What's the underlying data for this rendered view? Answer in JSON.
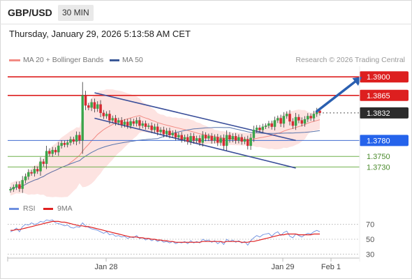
{
  "header": {
    "symbol": "GBP/USD",
    "timeframe": "30 MIN",
    "datetime": "Thursday, January 29, 2026 5:13:58 AM CET",
    "credit": "Research © 2026 Trading Central"
  },
  "legend": {
    "ma20": "MA 20 + Bollinger Bands",
    "ma50": "MA 50",
    "rsi": "RSI",
    "rsi_ma": "9MA"
  },
  "colors": {
    "bull": "#3ba44a",
    "bear": "#d52b32",
    "resistance": "#dd1f1f",
    "pivot": "#3f6bd1",
    "support": "#6fb04c",
    "channel": "#3b4f9a",
    "bollinger_fill": "#fde3e1",
    "ma20": "#f28b84",
    "ma50": "#5a76ad",
    "rsi": "#6d8fe0",
    "rsi_ma": "#e02020",
    "arrow": "#2a5fb0"
  },
  "chart_data": [
    {
      "type": "candlestick",
      "title": "GBP/USD 30 MIN",
      "ylim": [
        1.367,
        1.392
      ],
      "x_ticks": [
        "Jan 28",
        "Jan 29",
        "Feb 1"
      ],
      "last_price": 1.3832,
      "levels": [
        {
          "label": "1.3900",
          "value": 1.39,
          "kind": "resistance",
          "style": "box"
        },
        {
          "label": "1.3865",
          "value": 1.3865,
          "kind": "resistance",
          "style": "box"
        },
        {
          "label": "1.3832",
          "value": 1.3832,
          "kind": "last",
          "style": "box"
        },
        {
          "label": "1.3780",
          "value": 1.378,
          "kind": "pivot",
          "style": "box"
        },
        {
          "label": "1.3750",
          "value": 1.375,
          "kind": "support",
          "style": "text"
        },
        {
          "label": "1.3730",
          "value": 1.373,
          "kind": "support",
          "style": "text"
        }
      ],
      "close_start": 1.3686,
      "closes": [
        1.3688,
        1.3692,
        1.3697,
        1.3689,
        1.3705,
        1.3712,
        1.372,
        1.3718,
        1.3726,
        1.3722,
        1.374,
        1.3736,
        1.376,
        1.3755,
        1.3762,
        1.3758,
        1.377,
        1.3775,
        1.3772,
        1.3776,
        1.3782,
        1.3778,
        1.379,
        1.378,
        1.3865,
        1.3846,
        1.3842,
        1.3852,
        1.384,
        1.3848,
        1.3832,
        1.3826,
        1.383,
        1.3818,
        1.3822,
        1.3814,
        1.3818,
        1.381,
        1.3815,
        1.3808,
        1.3816,
        1.3812,
        1.3818,
        1.3808,
        1.3812,
        1.3806,
        1.3808,
        1.38,
        1.3806,
        1.3796,
        1.38,
        1.3792,
        1.3798,
        1.379,
        1.3794,
        1.3786,
        1.379,
        1.3782,
        1.3786,
        1.3778,
        1.3788,
        1.378,
        1.3784,
        1.3776,
        1.379,
        1.3784,
        1.3788,
        1.378,
        1.3786,
        1.3776,
        1.3784,
        1.377,
        1.379,
        1.3782,
        1.3788,
        1.378,
        1.3786,
        1.3778,
        1.3782,
        1.377,
        1.3785,
        1.38,
        1.3804,
        1.38,
        1.3806,
        1.3808,
        1.3812,
        1.3806,
        1.3818,
        1.3822,
        1.3812,
        1.3826,
        1.383,
        1.3816,
        1.3808,
        1.3824,
        1.3818,
        1.3812,
        1.382,
        1.3826,
        1.3822,
        1.383,
        1.3836,
        1.3832
      ],
      "channel": {
        "upper": [
          {
            "x": 28,
            "y": 1.387
          },
          {
            "x": 95,
            "y": 1.378
          }
        ],
        "lower": [
          {
            "x": 28,
            "y": 1.3822
          },
          {
            "x": 95,
            "y": 1.3728
          }
        ]
      },
      "arrow": {
        "from": {
          "x": 102,
          "y": 1.3835
        },
        "to": {
          "x": 117,
          "y": 1.39
        }
      }
    },
    {
      "type": "line",
      "title": "RSI",
      "ylim": [
        20,
        80
      ],
      "y_ticks": [
        70,
        50,
        30
      ],
      "series": [
        {
          "name": "RSI",
          "values": [
            60,
            62,
            65,
            60,
            67,
            70,
            69,
            72,
            70,
            71,
            74,
            73,
            76,
            75,
            76,
            72,
            71,
            70,
            68,
            69,
            66,
            65,
            67,
            66,
            72,
            68,
            66,
            64,
            63,
            62,
            60,
            58,
            60,
            56,
            57,
            54,
            55,
            53,
            54,
            51,
            53,
            52,
            55,
            51,
            52,
            49,
            51,
            48,
            50,
            47,
            49,
            46,
            47,
            45,
            47,
            44,
            46,
            45,
            47,
            44,
            48,
            45,
            47,
            45,
            50,
            48,
            49,
            46,
            48,
            44,
            47,
            43,
            50,
            47,
            49,
            46,
            48,
            45,
            47,
            42,
            48,
            52,
            55,
            53,
            56,
            57,
            58,
            54,
            58,
            60,
            55,
            59,
            61,
            54,
            52,
            57,
            55,
            53,
            56,
            58,
            57,
            60,
            62,
            60
          ]
        },
        {
          "name": "9MA",
          "values": [
            62,
            62,
            63,
            63,
            64,
            65,
            66,
            67,
            68,
            69,
            70,
            71,
            72,
            73,
            74,
            74,
            74,
            73,
            73,
            72,
            71,
            70,
            69,
            68,
            68,
            67,
            67,
            66,
            65,
            64,
            63,
            62,
            61,
            60,
            59,
            58,
            57,
            56,
            55,
            54,
            53,
            53,
            53,
            52,
            52,
            51,
            51,
            50,
            50,
            49,
            49,
            48,
            48,
            47,
            47,
            46,
            46,
            46,
            46,
            46,
            46,
            46,
            46,
            46,
            47,
            47,
            47,
            47,
            47,
            47,
            47,
            46,
            47,
            47,
            47,
            47,
            47,
            46,
            46,
            46,
            47,
            47,
            48,
            49,
            50,
            51,
            52,
            53,
            54,
            55,
            56,
            56,
            57,
            57,
            57,
            57,
            56,
            56,
            56,
            56,
            56,
            57,
            57,
            57
          ]
        }
      ]
    }
  ]
}
